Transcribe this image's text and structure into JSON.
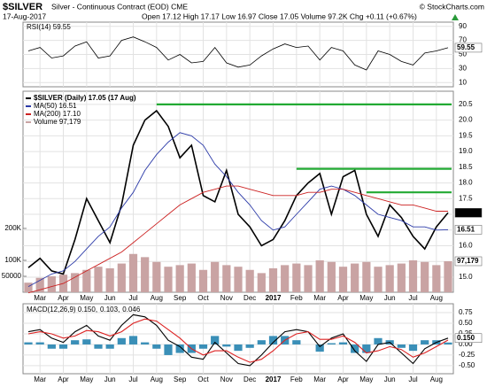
{
  "chart_data": {
    "type": "stock",
    "title": "$SILVER",
    "subtitle": "Silver - Continuous Contract (EOD) CME",
    "source": "© StockCharts.com",
    "date": "17-Aug-2017",
    "quote": "Open 17.12 High 17.17 Low 16.97 Close 17.05 Volume 97.2K Chg +0.11 (+0.67%)",
    "categories": [
      null,
      "Mar",
      null,
      "Apr",
      null,
      "May",
      null,
      "Jun",
      null,
      "Jul",
      null,
      "Aug",
      null,
      "Sep",
      null,
      "Oct",
      null,
      "Nov",
      null,
      "Dec",
      null,
      "2017",
      null,
      "Feb",
      null,
      "Mar",
      null,
      "Apr",
      null,
      "May",
      null,
      "Jun",
      null,
      "Jul",
      null,
      "Aug",
      null
    ],
    "grid": true,
    "rsi": {
      "legend": "RSI(14) 59.55",
      "color": "#000000",
      "values": [
        55,
        60,
        45,
        48,
        62,
        68,
        45,
        48,
        70,
        75,
        68,
        60,
        42,
        50,
        38,
        40,
        60,
        38,
        32,
        35,
        48,
        58,
        65,
        60,
        62,
        42,
        60,
        55,
        35,
        28,
        55,
        50,
        40,
        35,
        52,
        55,
        59.55
      ],
      "ylim": [
        4,
        96
      ],
      "yticks": [
        10,
        30,
        50,
        70,
        90
      ]
    },
    "price": {
      "series": [
        {
          "name": "$SILVER (Daily) 17.05 (17 Aug)",
          "color": "#000000",
          "values": [
            15.3,
            15.6,
            15.2,
            15.1,
            16.2,
            17.5,
            16.8,
            16.1,
            17.3,
            19.2,
            20.0,
            20.3,
            19.8,
            18.8,
            19.2,
            17.6,
            17.4,
            18.4,
            17.0,
            16.6,
            16.0,
            16.2,
            16.8,
            17.6,
            18.0,
            18.3,
            17.0,
            18.2,
            18.4,
            17.0,
            16.3,
            17.3,
            16.9,
            16.3,
            15.9,
            16.6,
            17.05
          ]
        },
        {
          "name": "MA(50) 16.51",
          "color": "#2b3aa8",
          "values": [
            14.7,
            14.9,
            15.1,
            15.2,
            15.5,
            15.9,
            16.3,
            16.6,
            17.2,
            17.7,
            18.4,
            18.9,
            19.3,
            19.6,
            19.5,
            19.2,
            18.6,
            18.2,
            17.7,
            17.3,
            16.8,
            16.5,
            16.6,
            17.0,
            17.4,
            17.8,
            17.9,
            17.8,
            17.6,
            17.3,
            17.0,
            16.9,
            16.8,
            16.6,
            16.6,
            16.5,
            16.51
          ]
        },
        {
          "name": "MA(200) 17.10",
          "color": "#cc2222",
          "values": [
            14.5,
            14.6,
            14.7,
            14.8,
            15.0,
            15.2,
            15.4,
            15.6,
            15.8,
            16.1,
            16.4,
            16.7,
            17.0,
            17.3,
            17.5,
            17.7,
            17.8,
            17.9,
            17.9,
            17.8,
            17.7,
            17.6,
            17.6,
            17.6,
            17.7,
            17.7,
            17.8,
            17.8,
            17.7,
            17.6,
            17.5,
            17.4,
            17.3,
            17.3,
            17.2,
            17.1,
            17.1
          ]
        },
        {
          "name": "Volume 97,179",
          "color": "#c9a3a3",
          "axis": "y2",
          "last_label": "97,179",
          "values": [
            30000,
            45000,
            50000,
            55000,
            60000,
            70000,
            80000,
            75000,
            90000,
            120000,
            110000,
            95000,
            80000,
            85000,
            90000,
            70000,
            95000,
            85000,
            80000,
            70000,
            60000,
            75000,
            85000,
            90000,
            85000,
            100000,
            95000,
            80000,
            90000,
            95000,
            80000,
            85000,
            90000,
            100000,
            95000,
            85000,
            97179
          ]
        }
      ],
      "ylim": [
        14.52,
        20.92
      ],
      "yticks": [
        {
          "value": 15,
          "label": "15.0"
        },
        15.5,
        {
          "value": 16,
          "label": "16.0"
        },
        16.5,
        {
          "value": 17,
          "label": "17.0"
        },
        17.5,
        {
          "value": 18,
          "label": "18.0"
        },
        18.5,
        {
          "value": 19,
          "label": "19.0"
        },
        19.5,
        {
          "value": 20,
          "label": "20.0"
        },
        20.5
      ],
      "y2lim": [
        0,
        630000
      ],
      "y2ticks": [
        50000,
        {
          "value": 100000,
          "label": "100K"
        },
        {
          "value": 200000,
          "label": "200K"
        }
      ],
      "hlines": [
        20.5,
        18.45,
        17.7
      ],
      "hline_color": "#22aa33"
    },
    "macd": {
      "legend": [
        "MACD(12,26,9) 0.150,",
        "0.103,",
        "0.046"
      ],
      "series": [
        {
          "color": "#000000",
          "last_label": "0.150",
          "values": [
            0.3,
            0.35,
            0.15,
            0.05,
            0.3,
            0.45,
            0.2,
            0.1,
            0.45,
            0.7,
            0.65,
            0.45,
            0.1,
            -0.05,
            -0.3,
            -0.35,
            0.05,
            -0.2,
            -0.45,
            -0.5,
            -0.25,
            0.05,
            0.3,
            0.35,
            0.3,
            -0.05,
            0.15,
            0.25,
            -0.15,
            -0.4,
            0.0,
            0.05,
            -0.2,
            -0.45,
            -0.1,
            0.05,
            0.15
          ]
        },
        {
          "color": "#dd2222",
          "values": [
            0.25,
            0.3,
            0.25,
            0.15,
            0.2,
            0.33,
            0.3,
            0.2,
            0.3,
            0.5,
            0.6,
            0.55,
            0.35,
            0.15,
            -0.1,
            -0.25,
            -0.15,
            -0.15,
            -0.3,
            -0.42,
            -0.35,
            -0.15,
            0.1,
            0.25,
            0.3,
            0.12,
            0.12,
            0.2,
            0.05,
            -0.2,
            -0.15,
            -0.05,
            -0.12,
            -0.3,
            -0.2,
            -0.05,
            0.103
          ]
        },
        {
          "color": "#3a8fb7",
          "values": [
            0.05,
            0.05,
            -0.1,
            -0.1,
            0.1,
            0.12,
            -0.1,
            -0.1,
            0.15,
            0.2,
            0.05,
            -0.1,
            -0.25,
            -0.2,
            -0.2,
            -0.1,
            0.2,
            -0.05,
            -0.15,
            -0.08,
            0.1,
            0.2,
            0.2,
            0.1,
            0.0,
            -0.17,
            0.03,
            0.05,
            -0.2,
            -0.2,
            0.15,
            0.1,
            -0.08,
            -0.15,
            0.1,
            0.1,
            0.046
          ]
        }
      ],
      "ylim": [
        -0.69,
        0.96
      ],
      "yticks": [
        {
          "value": -0.5,
          "label": "-0.50"
        },
        -0.25,
        {
          "value": 0,
          "label": "0.00"
        },
        0.25,
        {
          "value": 0.5,
          "label": "0.50"
        },
        0.75
      ]
    }
  }
}
